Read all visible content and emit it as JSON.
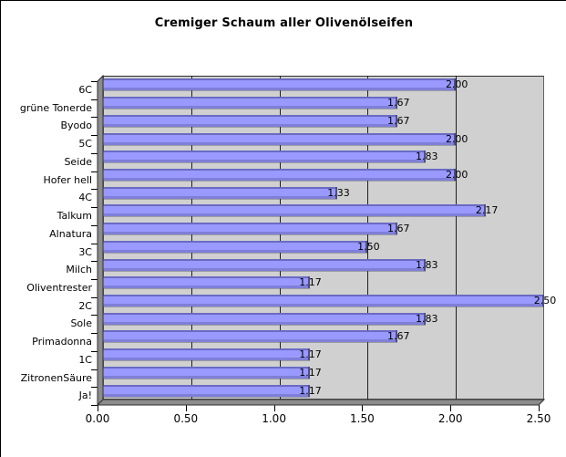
{
  "window": {
    "background": "#FFFFFF"
  },
  "chart_data": {
    "type": "bar",
    "orientation": "horizontal",
    "title": "Cremiger Schaum aller Olivenölseifen",
    "categories": [
      "6C",
      "grüne Tonerde",
      "Byodo",
      "5C",
      "Seide",
      "Hofer hell",
      "4C",
      "Talkum",
      "Alnatura",
      "3C",
      "Milch",
      "Oliventrester",
      "2C",
      "Sole",
      "Primadonna",
      "1C",
      "ZitronenSäure",
      "Ja!"
    ],
    "values": [
      2.0,
      1.67,
      1.67,
      2.0,
      1.83,
      2.0,
      1.33,
      2.17,
      1.67,
      1.5,
      1.83,
      1.17,
      2.5,
      1.83,
      1.67,
      1.17,
      1.17,
      1.17
    ],
    "value_labels": [
      "2.00",
      "1.67",
      "1.67",
      "2.00",
      "1.83",
      "2.00",
      "1.33",
      "2.17",
      "1.67",
      "1.50",
      "1.83",
      "1.17",
      "2.50",
      "1.83",
      "1.67",
      "1.17",
      "1.17",
      "1.17"
    ],
    "xlabel": "",
    "ylabel": "",
    "x_axis": {
      "min": 0,
      "max": 2.5,
      "tick_interval": 0.5,
      "tick_values": [
        0,
        0.5,
        1.0,
        1.5,
        2.0,
        2.5
      ],
      "tick_labels": [
        "0.00",
        "0.50",
        "1.00",
        "1.50",
        "2.00",
        "2.50"
      ]
    },
    "gridlines": {
      "vertical": true,
      "at": [
        0.5,
        1.0,
        1.5,
        2.0
      ]
    },
    "legend": "none",
    "style": {
      "bar_fill": "#9999FF",
      "bar_edge_dark": "#6A6AC4",
      "bar_end_cap": "#4F4F7A",
      "plot_background": "#D0D0D0",
      "wall_side_color": "#8C8C8C",
      "gridline_color": "#1F1F1F",
      "text_color": "#000000",
      "effect": "3d-bevel"
    }
  }
}
